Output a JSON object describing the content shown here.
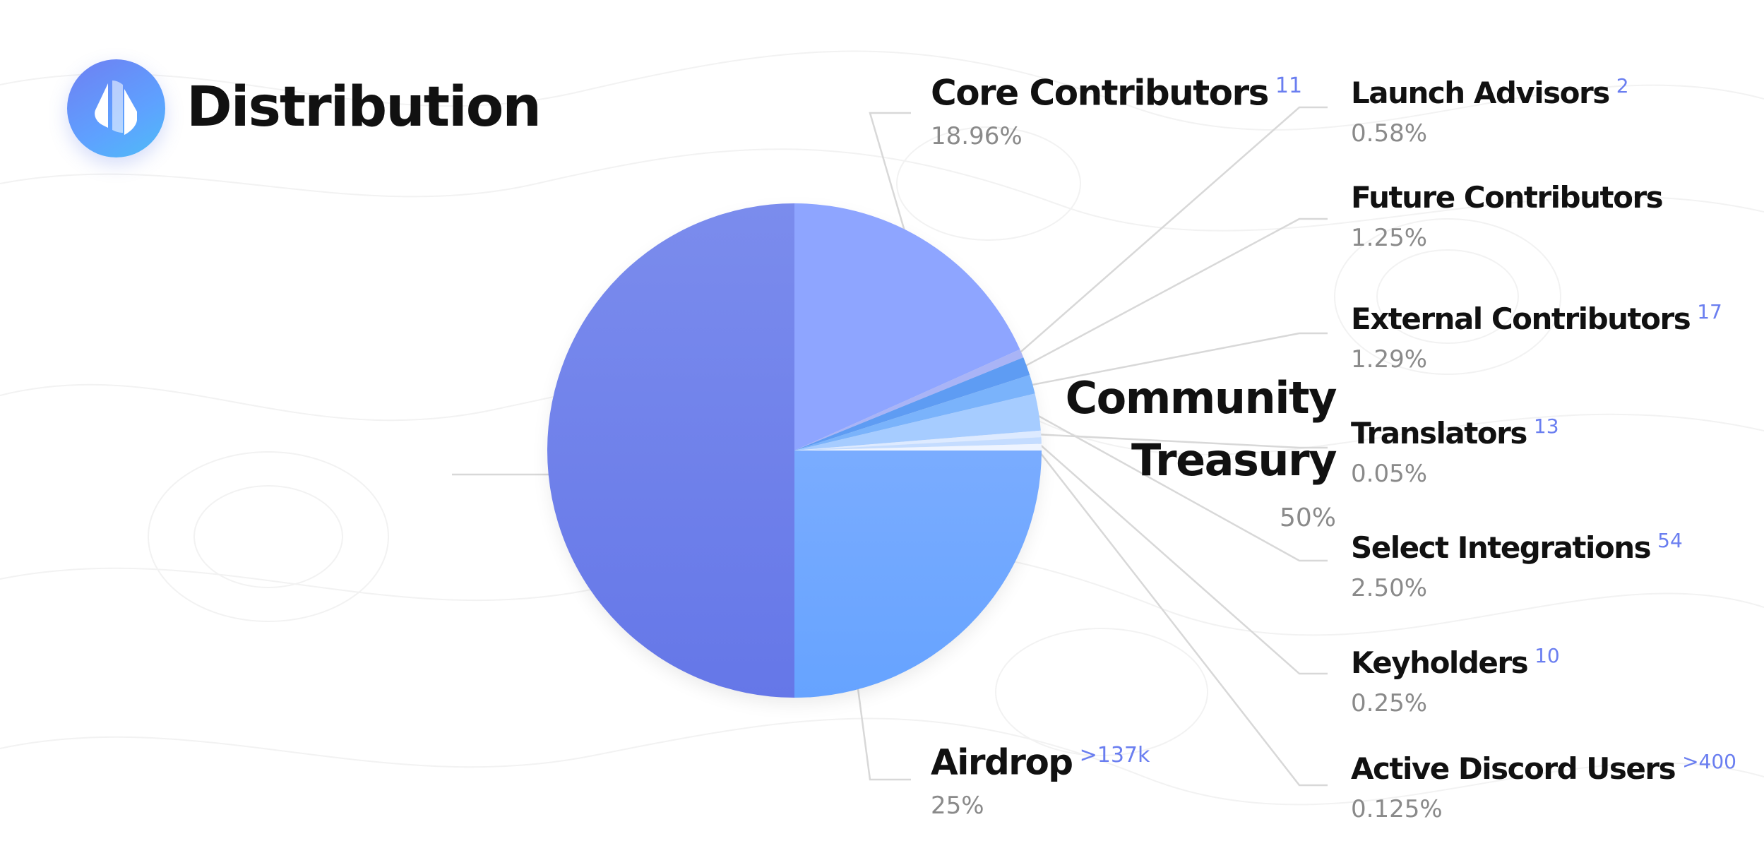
{
  "header": {
    "title": "Distribution",
    "logo_icon": "ens-logo-icon"
  },
  "colors": {
    "community_treasury_top": "#7b8ced",
    "community_treasury_bottom": "#6577e8",
    "airdrop_top": "#7aacff",
    "airdrop_bottom": "#66a3ff",
    "core_contributors": "#8ea5ff",
    "launch_advisors": "#a9b4f6",
    "future_contributors": "#5e9cf3",
    "external_contributors": "#7ab3fb",
    "translators": "#ddeaff",
    "select_integrations": "#a6ccff",
    "keyholders": "#c4dcff",
    "active_discord_users": "#eef4ff",
    "count_accent": "#6a7ef0",
    "leader_line": "#d8d8d8"
  },
  "chart_data": {
    "type": "pie",
    "title": "Distribution",
    "slices": [
      {
        "key": "community_treasury",
        "name": "Community Treasury",
        "value": 50,
        "label": "50%",
        "count": ""
      },
      {
        "key": "core_contributors",
        "name": "Core Contributors",
        "value": 18.96,
        "label": "18.96%",
        "count": "11"
      },
      {
        "key": "launch_advisors",
        "name": "Launch Advisors",
        "value": 0.58,
        "label": "0.58%",
        "count": "2"
      },
      {
        "key": "future_contributors",
        "name": "Future Contributors",
        "value": 1.25,
        "label": "1.25%",
        "count": ""
      },
      {
        "key": "external_contributors",
        "name": "External Contributors",
        "value": 1.29,
        "label": "1.29%",
        "count": "17"
      },
      {
        "key": "translators",
        "name": "Translators",
        "value": 0.05,
        "label": "0.05%",
        "count": "13"
      },
      {
        "key": "select_integrations",
        "name": "Select Integrations",
        "value": 2.5,
        "label": "2.50%",
        "count": "54"
      },
      {
        "key": "keyholders",
        "name": "Keyholders",
        "value": 0.25,
        "label": "0.25%",
        "count": "10"
      },
      {
        "key": "active_discord_users",
        "name": "Active Discord Users",
        "value": 0.125,
        "label": "0.125%",
        "count": ">400"
      },
      {
        "key": "airdrop",
        "name": "Airdrop",
        "value": 25,
        "label": "25%",
        "count": ">137k"
      }
    ]
  }
}
